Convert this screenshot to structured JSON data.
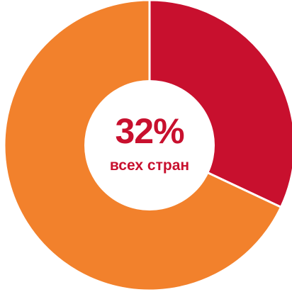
{
  "chart_data": {
    "type": "pie",
    "donut": true,
    "start_angle_deg": 0,
    "direction": "clockwise",
    "slices": [
      {
        "value": 32,
        "color": "#c8102e"
      },
      {
        "value": 68,
        "color": "#f2812c"
      }
    ],
    "center_value": "32%",
    "center_label": "всех стран",
    "legend": "none"
  }
}
